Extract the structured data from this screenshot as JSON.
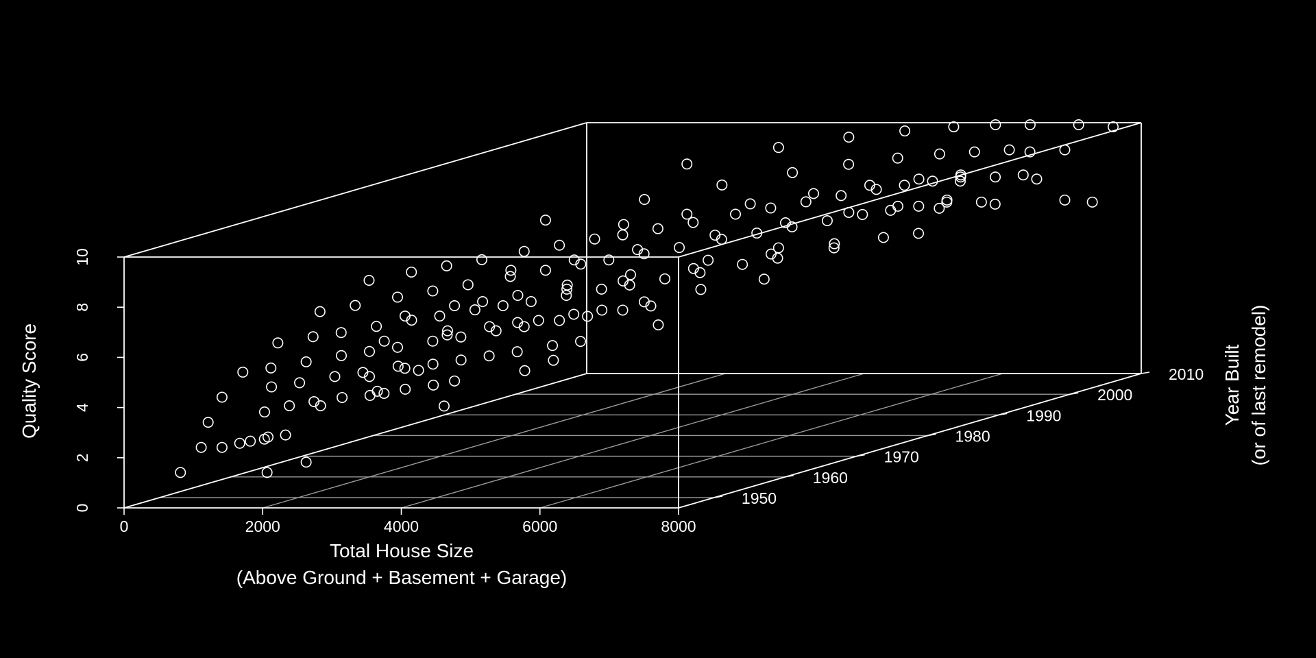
{
  "chart_data": {
    "type": "scatter3d",
    "title": "",
    "xlabel": [
      "Total House Size",
      "(Above Ground + Basement + Garage)"
    ],
    "ylabel": [
      "Year Built",
      "(or of last remodel)"
    ],
    "zlabel": "Quality Score",
    "xlim": [
      0,
      8000
    ],
    "ylim": [
      1945,
      2010
    ],
    "zlim": [
      0,
      10
    ],
    "x_ticks": [
      "0",
      "2000",
      "4000",
      "6000",
      "8000"
    ],
    "y_ticks": [
      "1950",
      "1960",
      "1970",
      "1980",
      "1990",
      "2000",
      "2010"
    ],
    "z_ticks": [
      "0",
      "2",
      "4",
      "6",
      "8",
      "10"
    ],
    "grid": "floor",
    "background": "#000000",
    "foreground": "#ffffff",
    "marker": "open-circle",
    "description_of_trend": "",
    "series": [
      {
        "points": [
          [
            300,
            1950,
            1
          ],
          [
            1550,
            1950,
            1
          ],
          [
            1600,
            1955,
            1
          ],
          [
            600,
            1950,
            2
          ],
          [
            900,
            1950,
            2
          ],
          [
            950,
            1952,
            2
          ],
          [
            1000,
            1953,
            2
          ],
          [
            1050,
            1955,
            2
          ],
          [
            1100,
            1954,
            2
          ],
          [
            1200,
            1956,
            2
          ],
          [
            2050,
            1970,
            2
          ],
          [
            700,
            1950,
            3
          ],
          [
            1000,
            1955,
            3
          ],
          [
            1050,
            1958,
            3
          ],
          [
            1200,
            1960,
            3
          ],
          [
            1400,
            1962,
            3
          ],
          [
            1600,
            1965,
            3
          ],
          [
            1700,
            1963,
            3
          ],
          [
            1800,
            1964,
            3
          ],
          [
            1900,
            1966,
            3
          ],
          [
            2100,
            1968,
            3
          ],
          [
            2200,
            1970,
            3
          ],
          [
            2600,
            1980,
            3
          ],
          [
            2700,
            1975,
            3
          ],
          [
            1500,
            1958,
            3
          ],
          [
            900,
            1950,
            4
          ],
          [
            1100,
            1955,
            4
          ],
          [
            1300,
            1957,
            4
          ],
          [
            1500,
            1960,
            4
          ],
          [
            1700,
            1962,
            4
          ],
          [
            1900,
            1965,
            4
          ],
          [
            2100,
            1964,
            4
          ],
          [
            2300,
            1966,
            4
          ],
          [
            2500,
            1968,
            4
          ],
          [
            2700,
            1970,
            4
          ],
          [
            2900,
            1972,
            4
          ],
          [
            3100,
            1975,
            4
          ],
          [
            3300,
            1977,
            4
          ],
          [
            2000,
            1960,
            4
          ],
          [
            2400,
            1963,
            4
          ],
          [
            3600,
            1985,
            4
          ],
          [
            1200,
            1950,
            5
          ],
          [
            1400,
            1952,
            5
          ],
          [
            1600,
            1955,
            5
          ],
          [
            1800,
            1958,
            5
          ],
          [
            2000,
            1960,
            5
          ],
          [
            2200,
            1962,
            5
          ],
          [
            2400,
            1965,
            5
          ],
          [
            2600,
            1967,
            5
          ],
          [
            2800,
            1970,
            5
          ],
          [
            3000,
            1972,
            5
          ],
          [
            3200,
            1975,
            5
          ],
          [
            3400,
            1977,
            5
          ],
          [
            3600,
            1980,
            5
          ],
          [
            3800,
            1982,
            5
          ],
          [
            1700,
            1965,
            5
          ],
          [
            2100,
            1970,
            5
          ],
          [
            2500,
            1972,
            5
          ],
          [
            2900,
            1975,
            5
          ],
          [
            3300,
            1980,
            5
          ],
          [
            3700,
            1990,
            5
          ],
          [
            4100,
            1995,
            5
          ],
          [
            2300,
            1968,
            5
          ],
          [
            2700,
            1974,
            5
          ],
          [
            3100,
            1978,
            5
          ],
          [
            3500,
            1984,
            5
          ],
          [
            1500,
            1952,
            6
          ],
          [
            1700,
            1955,
            6
          ],
          [
            1900,
            1957,
            6
          ],
          [
            2100,
            1960,
            6
          ],
          [
            2300,
            1963,
            6
          ],
          [
            2500,
            1965,
            6
          ],
          [
            2700,
            1968,
            6
          ],
          [
            2900,
            1970,
            6
          ],
          [
            3100,
            1972,
            6
          ],
          [
            3300,
            1975,
            6
          ],
          [
            3500,
            1978,
            6
          ],
          [
            3700,
            1980,
            6
          ],
          [
            3900,
            1983,
            6
          ],
          [
            4100,
            1986,
            6
          ],
          [
            4300,
            1990,
            6
          ],
          [
            4500,
            1993,
            6
          ],
          [
            2200,
            1970,
            6
          ],
          [
            2600,
            1975,
            6
          ],
          [
            3000,
            1978,
            6
          ],
          [
            3400,
            1982,
            6
          ],
          [
            3800,
            1988,
            6
          ],
          [
            4200,
            1995,
            6
          ],
          [
            4600,
            2000,
            6
          ],
          [
            4800,
            1998,
            6
          ],
          [
            5000,
            2003,
            6
          ],
          [
            5300,
            2005,
            6
          ],
          [
            2000,
            1965,
            6
          ],
          [
            2400,
            1972,
            6
          ],
          [
            2800,
            1980,
            6
          ],
          [
            3200,
            1985,
            6
          ],
          [
            3600,
            1992,
            6
          ],
          [
            4000,
            1998,
            6
          ],
          [
            1800,
            1955,
            7
          ],
          [
            2000,
            1958,
            7
          ],
          [
            2200,
            1962,
            7
          ],
          [
            2400,
            1965,
            7
          ],
          [
            2600,
            1968,
            7
          ],
          [
            2800,
            1972,
            7
          ],
          [
            3000,
            1975,
            7
          ],
          [
            3200,
            1978,
            7
          ],
          [
            3400,
            1980,
            7
          ],
          [
            3600,
            1983,
            7
          ],
          [
            3800,
            1986,
            7
          ],
          [
            4000,
            1990,
            7
          ],
          [
            4200,
            1993,
            7
          ],
          [
            4400,
            1996,
            7
          ],
          [
            4600,
            1999,
            7
          ],
          [
            4800,
            2002,
            7
          ],
          [
            5000,
            2004,
            7
          ],
          [
            5200,
            2006,
            7
          ],
          [
            5400,
            2008,
            7
          ],
          [
            2500,
            1975,
            7
          ],
          [
            2900,
            1980,
            7
          ],
          [
            3300,
            1985,
            7
          ],
          [
            3700,
            1992,
            7
          ],
          [
            4100,
            1998,
            7
          ],
          [
            4500,
            2003,
            7
          ],
          [
            4900,
            2006,
            7
          ],
          [
            5300,
            2009,
            7
          ],
          [
            5600,
            2005,
            7
          ],
          [
            5900,
            2008,
            7
          ],
          [
            6200,
            2007,
            7
          ],
          [
            7000,
            2009,
            7
          ],
          [
            7500,
            2008,
            7
          ],
          [
            2200,
            1958,
            8
          ],
          [
            2400,
            1962,
            8
          ],
          [
            2600,
            1965,
            8
          ],
          [
            2800,
            1968,
            8
          ],
          [
            3000,
            1972,
            8
          ],
          [
            3200,
            1975,
            8
          ],
          [
            3400,
            1978,
            8
          ],
          [
            3600,
            1980,
            8
          ],
          [
            3800,
            1983,
            8
          ],
          [
            4000,
            1986,
            8
          ],
          [
            4200,
            1990,
            8
          ],
          [
            4400,
            1993,
            8
          ],
          [
            4600,
            1996,
            8
          ],
          [
            4800,
            1999,
            8
          ],
          [
            5000,
            2002,
            8
          ],
          [
            5200,
            2004,
            8
          ],
          [
            5400,
            2006,
            8
          ],
          [
            5600,
            2008,
            8
          ],
          [
            3100,
            1985,
            8
          ],
          [
            3500,
            1990,
            8
          ],
          [
            3900,
            1995,
            8
          ],
          [
            4300,
            2000,
            8
          ],
          [
            4700,
            2004,
            8
          ],
          [
            5100,
            2007,
            8
          ],
          [
            5500,
            2009,
            8
          ],
          [
            5800,
            2006,
            8
          ],
          [
            6100,
            2008,
            8
          ],
          [
            6400,
            2009,
            8
          ],
          [
            6800,
            2007,
            8
          ],
          [
            3000,
            1975,
            9
          ],
          [
            3400,
            1985,
            9
          ],
          [
            3800,
            1992,
            9
          ],
          [
            4200,
            1998,
            9
          ],
          [
            4600,
            2002,
            9
          ],
          [
            5000,
            2005,
            9
          ],
          [
            5400,
            2007,
            9
          ],
          [
            5800,
            2008,
            9
          ],
          [
            6200,
            2009,
            9
          ],
          [
            6600,
            2008,
            9
          ],
          [
            7000,
            2009,
            9
          ],
          [
            3500,
            1990,
            10
          ],
          [
            4000,
            1998,
            10
          ],
          [
            4500,
            2003,
            10
          ],
          [
            5000,
            2006,
            10
          ],
          [
            5500,
            2008,
            10
          ],
          [
            6000,
            2009,
            10
          ],
          [
            6500,
            2009,
            10
          ],
          [
            7200,
            2009,
            10
          ],
          [
            7800,
            2008,
            10
          ]
        ]
      }
    ]
  }
}
